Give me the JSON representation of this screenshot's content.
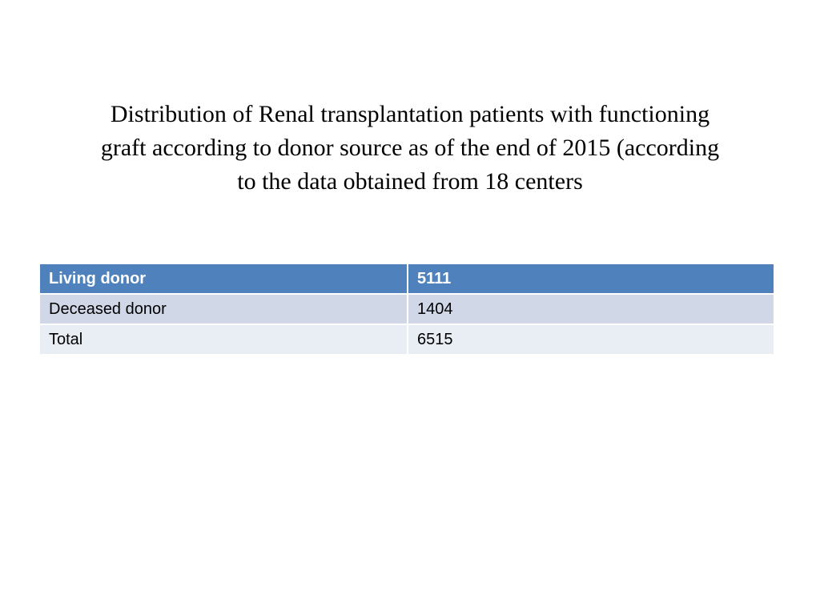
{
  "title": {
    "lines": [
      "Distribution of Renal transplantation patients with functioning",
      "graft according to donor source as of the end of 2015 (according",
      "to the data obtained from 18 centers"
    ]
  },
  "table": {
    "header": {
      "label": "Living donor",
      "value": "5111"
    },
    "rows": [
      {
        "label": "Deceased donor",
        "value": "1404"
      },
      {
        "label": "Total",
        "value": "6515"
      }
    ]
  },
  "colors": {
    "header_bg": "#4f81bd",
    "row_band_dark": "#d0d8e8",
    "row_band_light": "#e9edf4"
  }
}
